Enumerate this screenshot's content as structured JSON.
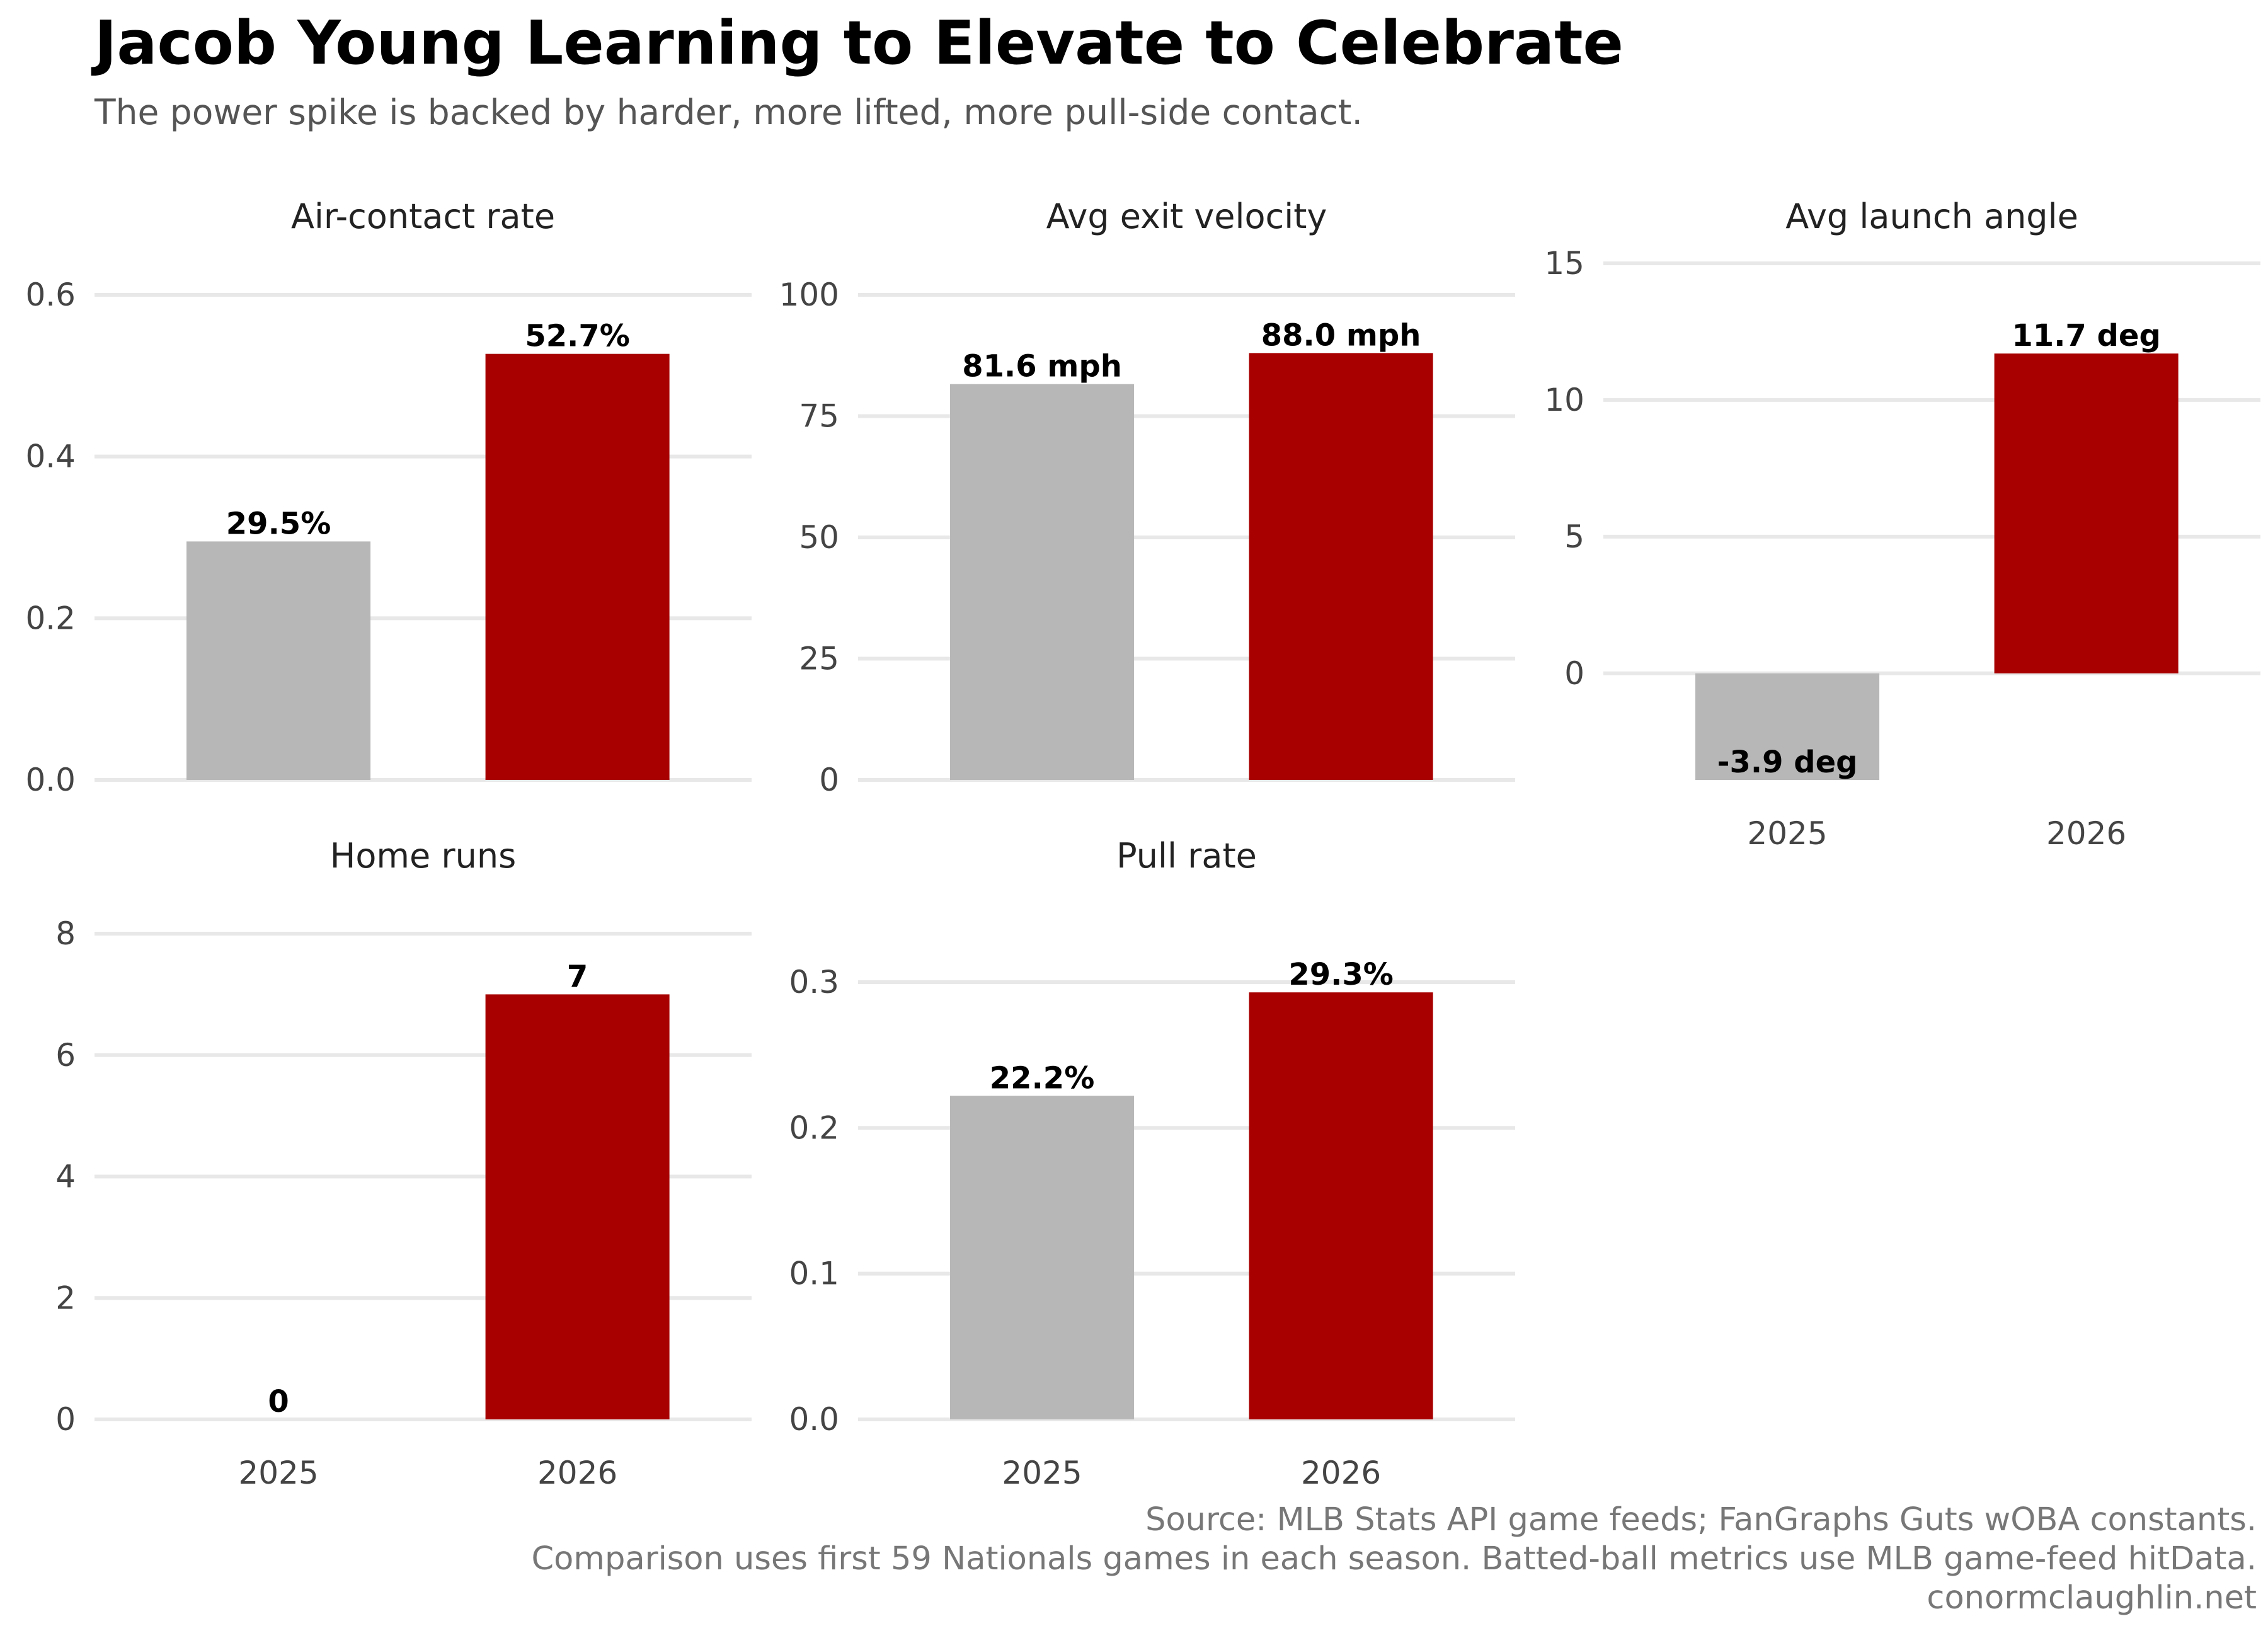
{
  "title": "Jacob Young Learning to Elevate to Celebrate",
  "subtitle": "The power spike is backed by harder, more lifted, more pull-side contact.",
  "caption": [
    "Source: MLB Stats API game feeds; FanGraphs Guts wOBA constants.",
    "Comparison uses first 59 Nationals games in each season. Batted-ball metrics use MLB game-feed hitData.",
    "conormclaughlin.net"
  ],
  "colors": {
    "2025": "#b7b7b7",
    "2026": "#a80000"
  },
  "chart_data": [
    {
      "type": "bar",
      "title": "Air-contact rate",
      "categories": [
        "2025",
        "2026"
      ],
      "values": [
        0.295,
        0.527
      ],
      "labels": [
        "29.5%",
        "52.7%"
      ],
      "ylim": [
        0,
        0.6
      ],
      "yticks": [
        0,
        0.2,
        0.4,
        0.6
      ],
      "ytick_labels": [
        "0.0",
        "0.2",
        "0.4",
        "0.6"
      ],
      "show_categories": false
    },
    {
      "type": "bar",
      "title": "Avg exit velocity",
      "categories": [
        "2025",
        "2026"
      ],
      "values": [
        81.6,
        88.0
      ],
      "labels": [
        "81.6 mph",
        "88.0 mph"
      ],
      "ylim": [
        0,
        100
      ],
      "yticks": [
        0,
        25,
        50,
        75,
        100
      ],
      "ytick_labels": [
        "0",
        "25",
        "50",
        "75",
        "100"
      ],
      "show_categories": false
    },
    {
      "type": "bar",
      "title": "Avg launch angle",
      "categories": [
        "2025",
        "2026"
      ],
      "values": [
        -3.9,
        11.7
      ],
      "labels": [
        "-3.9 deg",
        "11.7 deg"
      ],
      "ylim": [
        -3.9,
        15
      ],
      "yticks": [
        0,
        5,
        10,
        15
      ],
      "ytick_labels": [
        "0",
        "5",
        "10",
        "15"
      ],
      "show_categories": true
    },
    {
      "type": "bar",
      "title": "Home runs",
      "categories": [
        "2025",
        "2026"
      ],
      "values": [
        0,
        7
      ],
      "labels": [
        "0",
        "7"
      ],
      "ylim": [
        0,
        8
      ],
      "yticks": [
        0,
        2,
        4,
        6,
        8
      ],
      "ytick_labels": [
        "0",
        "2",
        "4",
        "6",
        "8"
      ],
      "show_categories": true
    },
    {
      "type": "bar",
      "title": "Pull rate",
      "categories": [
        "2025",
        "2026"
      ],
      "values": [
        0.222,
        0.293
      ],
      "labels": [
        "22.2%",
        "29.3%"
      ],
      "ylim": [
        0,
        0.3
      ],
      "yticks": [
        0,
        0.1,
        0.2,
        0.3
      ],
      "ytick_labels": [
        "0.0",
        "0.1",
        "0.2",
        "0.3"
      ],
      "show_categories": true
    }
  ]
}
